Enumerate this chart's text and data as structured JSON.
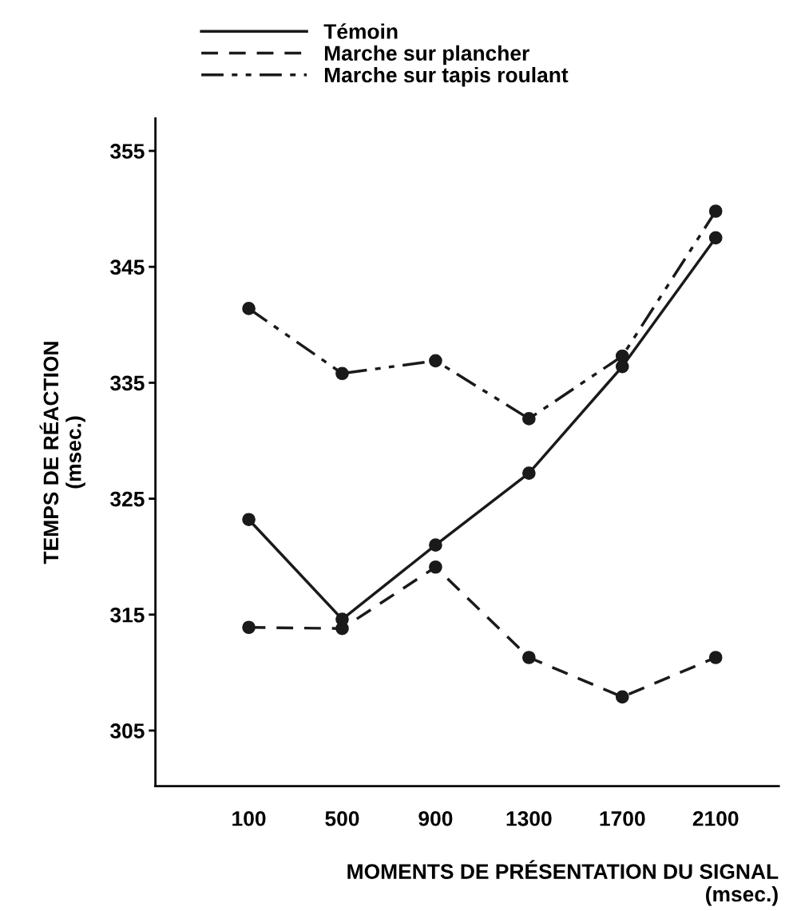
{
  "chart_data": {
    "type": "line",
    "xlabel": "MOMENTS DE PRÉSENTATION DU SIGNAL\n(msec.)",
    "ylabel": "TEMPS DE RÉACTION\n(msec.)",
    "x": [
      100,
      500,
      900,
      1300,
      1700,
      2100
    ],
    "series": [
      {
        "name": "Témoin",
        "color": "#1a1a1a",
        "line_style": "solid",
        "values": [
          323.2,
          314.6,
          321.0,
          327.2,
          336.4,
          347.5
        ]
      },
      {
        "name": "Marche sur plancher",
        "color": "#1a1a1a",
        "line_style": "dashed",
        "values": [
          313.9,
          313.8,
          319.1,
          311.3,
          307.9,
          311.3
        ]
      },
      {
        "name": "Marche sur tapis roulant",
        "color": "#1a1a1a",
        "line_style": "dashdot",
        "values": [
          341.4,
          335.8,
          336.9,
          331.9,
          337.3,
          349.8
        ]
      }
    ],
    "marker": "circle",
    "xlim": [
      -300,
      2370
    ],
    "ylim": [
      300.2,
      357.8
    ],
    "xticks": [
      100,
      500,
      900,
      1300,
      1700,
      2100
    ],
    "yticks": [
      305,
      315,
      325,
      335,
      345,
      355
    ],
    "grid": false,
    "legend": "top left"
  }
}
